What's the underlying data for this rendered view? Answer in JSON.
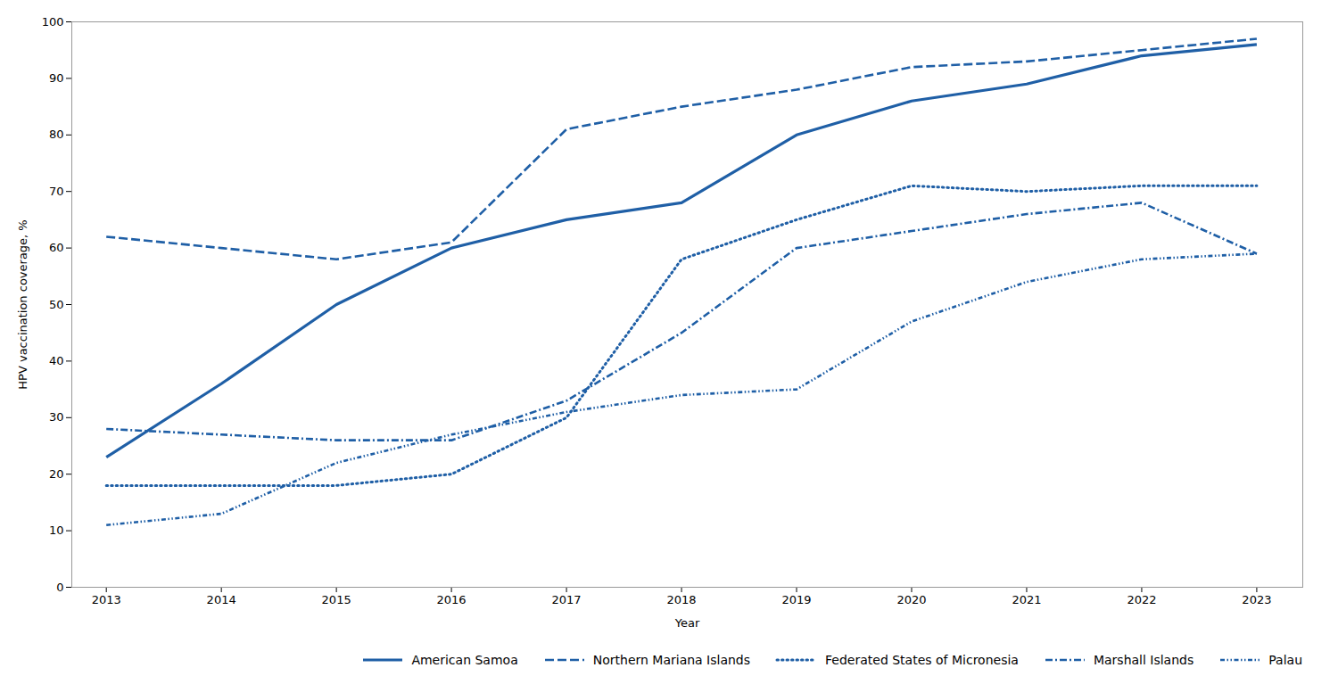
{
  "chart_data": {
    "type": "line",
    "x": [
      2013,
      2014,
      2015,
      2016,
      2017,
      2018,
      2019,
      2020,
      2021,
      2022,
      2023
    ],
    "xlabel": "Year",
    "ylabel": "HPV vaccination coverage, %",
    "xlim": [
      2012.7,
      2023.4
    ],
    "xticks": [
      2013,
      2014,
      2015,
      2016,
      2017,
      2018,
      2019,
      2020,
      2021,
      2022,
      2023
    ],
    "ylim": [
      0,
      100
    ],
    "yticks": [
      0,
      10,
      20,
      30,
      40,
      50,
      60,
      70,
      80,
      90,
      100
    ],
    "grid": false,
    "legend": "lower right",
    "color": "#1f5fa6",
    "series": [
      {
        "name": "American Samoa",
        "line_style": "solid",
        "values": [
          23,
          36,
          50,
          60,
          65,
          68,
          80,
          86,
          89,
          94,
          96
        ]
      },
      {
        "name": "Northern Mariana Islands",
        "line_style": "dashed",
        "values": [
          62,
          60,
          58,
          61,
          81,
          85,
          88,
          92,
          93,
          95,
          97
        ]
      },
      {
        "name": "Federated States of Micronesia",
        "line_style": "dotted",
        "values": [
          18,
          18,
          18,
          20,
          30,
          58,
          65,
          71,
          70,
          71,
          71
        ]
      },
      {
        "name": "Marshall Islands",
        "line_style": "dashdot",
        "values": [
          28,
          27,
          26,
          26,
          33,
          45,
          60,
          63,
          66,
          68,
          59
        ]
      },
      {
        "name": "Palau",
        "line_style": "dashdotdot",
        "values": [
          11,
          13,
          22,
          27,
          31,
          34,
          35,
          47,
          54,
          58,
          59
        ]
      }
    ]
  }
}
